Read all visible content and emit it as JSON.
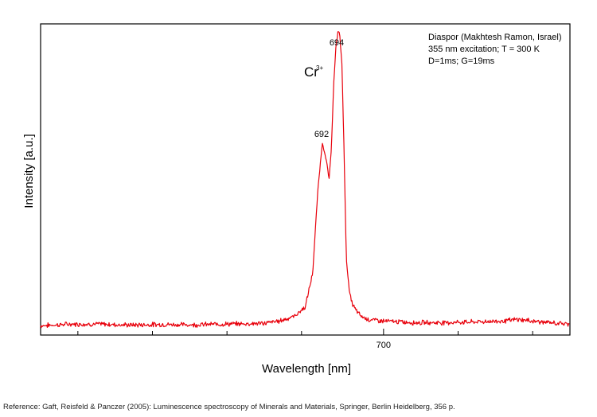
{
  "chart_data": {
    "type": "line",
    "xlabel": "Wavelength [nm]",
    "ylabel": "Intensity [a.u.]",
    "xlim": [
      654,
      725
    ],
    "ylim": [
      0,
      1.0
    ],
    "x_ticks": [
      {
        "value": 700,
        "label": "700"
      }
    ],
    "minor_x_ticks": [
      659,
      669,
      679,
      689,
      710,
      720
    ],
    "grid": false,
    "series_color": "#e8000b",
    "series": [
      {
        "x": [
          654,
          658,
          662,
          666,
          670,
          674,
          678,
          681,
          684,
          686,
          688,
          689.5,
          690.5,
          691.2,
          691.8,
          692.4,
          692.7,
          693,
          693.3,
          693.6,
          693.9,
          694.1,
          694.4,
          694.7,
          695,
          695.4,
          695.8,
          696.3,
          697,
          698,
          700,
          704,
          708,
          712,
          716,
          718,
          720,
          722,
          725
        ],
        "y": [
          0.03,
          0.035,
          0.035,
          0.032,
          0.034,
          0.033,
          0.035,
          0.036,
          0.038,
          0.045,
          0.06,
          0.09,
          0.2,
          0.47,
          0.62,
          0.55,
          0.5,
          0.6,
          0.8,
          0.92,
          0.98,
          0.97,
          0.88,
          0.6,
          0.25,
          0.14,
          0.1,
          0.08,
          0.06,
          0.05,
          0.045,
          0.04,
          0.04,
          0.042,
          0.045,
          0.05,
          0.045,
          0.04,
          0.035
        ]
      }
    ],
    "annotations": {
      "peak_692": "692",
      "peak_694": "694",
      "ion": "Cr",
      "ion_charge": "3+",
      "sample_lines": [
        "Diaspor (Makhtesh Ramon, Israel)",
        "355 nm excitation; T = 300 K",
        "D=1ms; G=19ms"
      ]
    }
  },
  "reference": "Reference: Gaft, Reisfeld & Panczer (2005): Luminescence spectroscopy of Minerals and Materials, Springer, Berlin Heidelberg, 356 p."
}
